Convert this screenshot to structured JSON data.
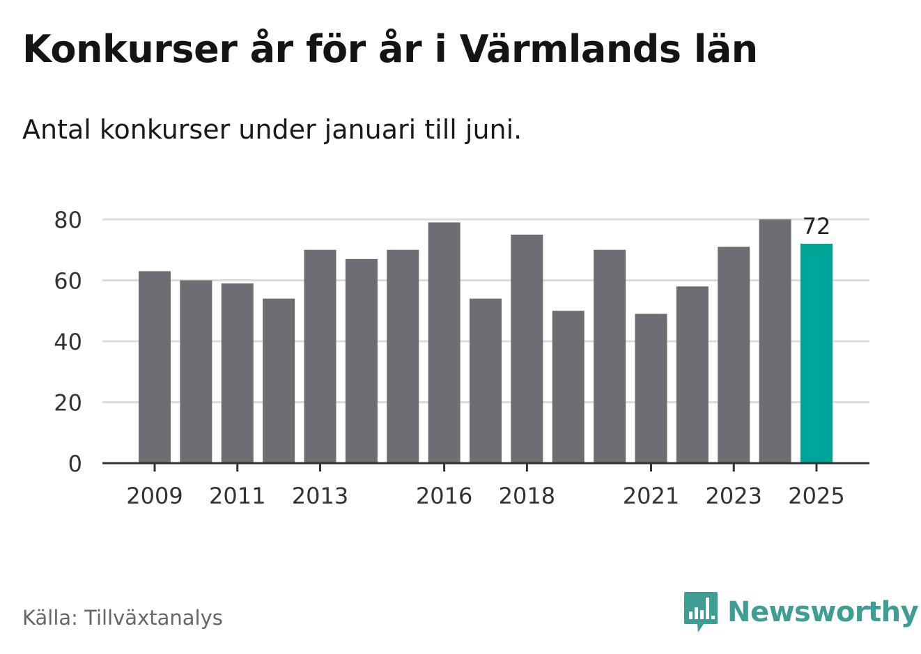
{
  "header": {
    "title": "Konkurser år för år i Värmlands län",
    "subtitle": "Antal konkurser under januari till juni."
  },
  "footer": {
    "source": "Källa: Tillväxtanalys",
    "brand": "Newsworthy"
  },
  "colors": {
    "bar": "#6e6d74",
    "highlight": "#00a59a",
    "brand": "#3e9e93",
    "grid": "#dcdcdc",
    "axis": "#333333"
  },
  "chart_data": {
    "type": "bar",
    "categories": [
      "2009",
      "2010",
      "2011",
      "2012",
      "2013",
      "2014",
      "2015",
      "2016",
      "2017",
      "2018",
      "2019",
      "2020",
      "2021",
      "2022",
      "2023",
      "2024",
      "2025"
    ],
    "values": [
      63,
      60,
      59,
      54,
      70,
      67,
      70,
      79,
      54,
      75,
      50,
      70,
      49,
      58,
      71,
      80,
      72
    ],
    "x_tick_labels": [
      "2009",
      "2011",
      "2013",
      "2016",
      "2018",
      "2021",
      "2023",
      "2025"
    ],
    "y_ticks": [
      0,
      20,
      40,
      60,
      80
    ],
    "ylim": [
      0,
      80
    ],
    "highlight_category": "2025",
    "data_labels": [
      {
        "category": "2025",
        "label": "72"
      }
    ],
    "title": "Konkurser år för år i Värmlands län",
    "subtitle": "Antal konkurser under januari till juni.",
    "xlabel": "",
    "ylabel": "",
    "grid": true,
    "legend": "none"
  }
}
